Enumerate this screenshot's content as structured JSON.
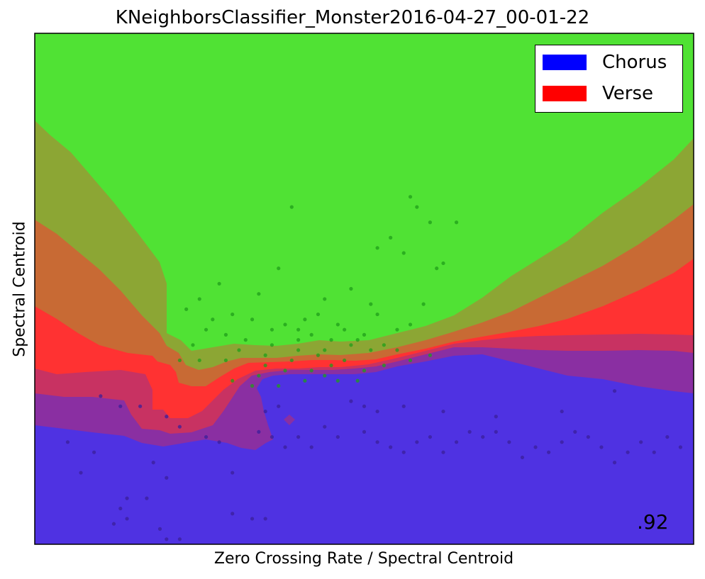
{
  "chart_data": {
    "type": "scatter",
    "title": "KNeighborsClassifier_Monster2016-04-27_00-01-22",
    "xlabel": "Zero Crossing Rate / Spectral Centroid",
    "ylabel": "Spectral Centroid",
    "xticks": [],
    "yticks": [],
    "legend": {
      "placement": "top-right",
      "entries": [
        {
          "label": "Chorus",
          "color": "#0000ff"
        },
        {
          "label": "Verse",
          "color": "#ff0000"
        }
      ]
    },
    "score_text": ".92",
    "colors": {
      "green": "#50e234",
      "olive": "#8ca634",
      "orange": "#c86a34",
      "red": "#ff3232",
      "crimson": "#c83262",
      "purple": "#8a2fa2",
      "blue": "#4f32e2"
    },
    "series": [
      {
        "class": "green",
        "points": [
          [
            0.52,
            0.42
          ],
          [
            0.56,
            0.43
          ],
          [
            0.54,
            0.4
          ],
          [
            0.6,
            0.37
          ],
          [
            0.64,
            0.37
          ],
          [
            0.58,
            0.34
          ],
          [
            0.57,
            0.32
          ],
          [
            0.39,
            0.34
          ],
          [
            0.37,
            0.46
          ],
          [
            0.48,
            0.5
          ],
          [
            0.43,
            0.55
          ],
          [
            0.44,
            0.52
          ],
          [
            0.62,
            0.45
          ],
          [
            0.61,
            0.46
          ],
          [
            0.51,
            0.53
          ],
          [
            0.52,
            0.55
          ],
          [
            0.28,
            0.49
          ],
          [
            0.23,
            0.54
          ],
          [
            0.34,
            0.51
          ],
          [
            0.3,
            0.55
          ],
          [
            0.25,
            0.52
          ],
          [
            0.46,
            0.57
          ],
          [
            0.47,
            0.58
          ],
          [
            0.41,
            0.56
          ],
          [
            0.4,
            0.58
          ],
          [
            0.5,
            0.59
          ],
          [
            0.55,
            0.58
          ],
          [
            0.57,
            0.57
          ],
          [
            0.59,
            0.53
          ],
          [
            0.33,
            0.56
          ],
          [
            0.36,
            0.58
          ],
          [
            0.38,
            0.57
          ],
          [
            0.42,
            0.59
          ],
          [
            0.45,
            0.6
          ],
          [
            0.48,
            0.61
          ],
          [
            0.44,
            0.62
          ],
          [
            0.4,
            0.62
          ],
          [
            0.36,
            0.61
          ],
          [
            0.32,
            0.6
          ],
          [
            0.29,
            0.59
          ],
          [
            0.31,
            0.62
          ],
          [
            0.35,
            0.63
          ],
          [
            0.39,
            0.64
          ],
          [
            0.43,
            0.63
          ],
          [
            0.47,
            0.64
          ],
          [
            0.51,
            0.62
          ],
          [
            0.49,
            0.6
          ],
          [
            0.53,
            0.61
          ],
          [
            0.42,
            0.66
          ],
          [
            0.38,
            0.66
          ],
          [
            0.34,
            0.67
          ],
          [
            0.27,
            0.56
          ],
          [
            0.26,
            0.58
          ],
          [
            0.24,
            0.61
          ],
          [
            0.45,
            0.65
          ],
          [
            0.46,
            0.68
          ],
          [
            0.41,
            0.68
          ],
          [
            0.37,
            0.69
          ],
          [
            0.33,
            0.69
          ],
          [
            0.3,
            0.68
          ],
          [
            0.25,
            0.64
          ],
          [
            0.22,
            0.64
          ],
          [
            0.55,
            0.62
          ],
          [
            0.57,
            0.64
          ],
          [
            0.6,
            0.63
          ],
          [
            0.29,
            0.64
          ],
          [
            0.5,
            0.66
          ],
          [
            0.53,
            0.65
          ],
          [
            0.49,
            0.68
          ],
          [
            0.44,
            0.67
          ],
          [
            0.4,
            0.6
          ],
          [
            0.35,
            0.65
          ]
        ]
      },
      {
        "class": "purple",
        "points": [
          [
            0.1,
            0.71
          ],
          [
            0.13,
            0.73
          ],
          [
            0.16,
            0.73
          ],
          [
            0.2,
            0.75
          ],
          [
            0.22,
            0.77
          ],
          [
            0.35,
            0.74
          ],
          [
            0.37,
            0.73
          ],
          [
            0.48,
            0.72
          ],
          [
            0.5,
            0.73
          ],
          [
            0.52,
            0.74
          ],
          [
            0.56,
            0.73
          ],
          [
            0.62,
            0.74
          ],
          [
            0.7,
            0.75
          ],
          [
            0.8,
            0.74
          ],
          [
            0.88,
            0.7
          ],
          [
            0.05,
            0.8
          ],
          [
            0.07,
            0.86
          ],
          [
            0.09,
            0.82
          ],
          [
            0.18,
            0.84
          ],
          [
            0.2,
            0.87
          ],
          [
            0.26,
            0.79
          ],
          [
            0.3,
            0.86
          ],
          [
            0.14,
            0.91
          ],
          [
            0.17,
            0.91
          ],
          [
            0.13,
            0.93
          ],
          [
            0.14,
            0.95
          ],
          [
            0.12,
            0.96
          ],
          [
            0.19,
            0.97
          ],
          [
            0.2,
            0.99
          ],
          [
            0.22,
            0.99
          ],
          [
            0.3,
            0.94
          ],
          [
            0.33,
            0.95
          ],
          [
            0.35,
            0.95
          ],
          [
            0.4,
            0.79
          ],
          [
            0.42,
            0.81
          ],
          [
            0.44,
            0.77
          ],
          [
            0.46,
            0.79
          ],
          [
            0.5,
            0.78
          ],
          [
            0.52,
            0.8
          ],
          [
            0.54,
            0.81
          ],
          [
            0.56,
            0.82
          ],
          [
            0.58,
            0.8
          ],
          [
            0.6,
            0.79
          ],
          [
            0.62,
            0.82
          ],
          [
            0.64,
            0.8
          ],
          [
            0.66,
            0.78
          ],
          [
            0.68,
            0.79
          ],
          [
            0.7,
            0.78
          ],
          [
            0.72,
            0.8
          ],
          [
            0.74,
            0.83
          ],
          [
            0.76,
            0.81
          ],
          [
            0.78,
            0.82
          ],
          [
            0.8,
            0.8
          ],
          [
            0.82,
            0.78
          ],
          [
            0.84,
            0.79
          ],
          [
            0.86,
            0.81
          ],
          [
            0.88,
            0.84
          ],
          [
            0.9,
            0.82
          ],
          [
            0.92,
            0.8
          ],
          [
            0.94,
            0.82
          ],
          [
            0.96,
            0.79
          ],
          [
            0.98,
            0.81
          ],
          [
            0.38,
            0.81
          ],
          [
            0.36,
            0.79
          ],
          [
            0.34,
            0.78
          ],
          [
            0.28,
            0.8
          ]
        ]
      }
    ]
  }
}
